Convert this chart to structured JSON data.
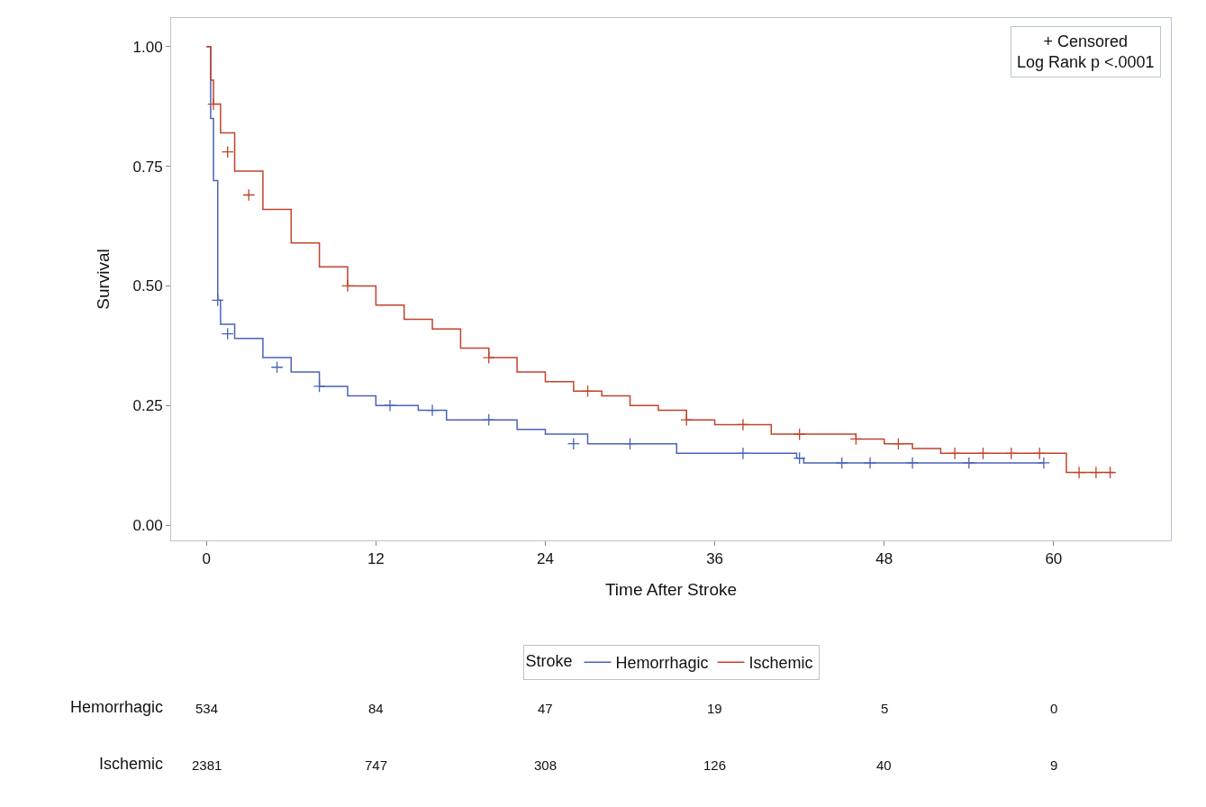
{
  "chart_data": {
    "type": "step",
    "xlabel": "Time After Stroke",
    "ylabel": "Survival",
    "legend_title": "Stroke",
    "legend": "bottom",
    "marker": "none",
    "line_style": "solid",
    "xlim": [
      -2.5,
      68.3
    ],
    "xticks": [
      0,
      12,
      24,
      36,
      48,
      60
    ],
    "ylim": [
      -0.032,
      1.06
    ],
    "yticks": [
      {
        "value": 0,
        "label": "0.00"
      },
      {
        "value": 0.25,
        "label": "0.25"
      },
      {
        "value": 0.5,
        "label": "0.50"
      },
      {
        "value": 0.75,
        "label": "0.75"
      },
      {
        "value": 1,
        "label": "1.00"
      }
    ],
    "series": [
      {
        "name": "Hemorrhagic",
        "color": "#4a63b8",
        "x": [
          0,
          0.3,
          0.5,
          0.8,
          1,
          2,
          4,
          6,
          8,
          10,
          12,
          15,
          17,
          22,
          24,
          27,
          33.3,
          41.8,
          42.3,
          59.3
        ],
        "values": [
          1,
          0.85,
          0.72,
          0.47,
          0.42,
          0.39,
          0.35,
          0.32,
          0.29,
          0.27,
          0.25,
          0.24,
          0.22,
          0.2,
          0.19,
          0.17,
          0.15,
          0.14,
          0.13,
          0.13
        ]
      },
      {
        "name": "Ischemic",
        "color": "#c0432b",
        "x": [
          0,
          0.3,
          0.5,
          1,
          2,
          4,
          6,
          8,
          10,
          12,
          14,
          16,
          18,
          20,
          22,
          24,
          26,
          28,
          30,
          32,
          34,
          36,
          40,
          46,
          48,
          50,
          52,
          60.9,
          64.3
        ],
        "values": [
          1,
          0.93,
          0.88,
          0.82,
          0.74,
          0.66,
          0.59,
          0.54,
          0.5,
          0.46,
          0.43,
          0.41,
          0.37,
          0.35,
          0.32,
          0.3,
          0.28,
          0.27,
          0.25,
          0.24,
          0.22,
          0.21,
          0.19,
          0.18,
          0.17,
          0.16,
          0.15,
          0.11,
          0.11
        ]
      },
      {
        "type": "scatter",
        "marker": "cross",
        "color": "#4a63b8",
        "x": [
          0.8,
          1.5,
          5,
          8,
          13,
          16,
          20,
          26,
          30,
          38,
          42,
          45,
          47,
          50,
          54,
          59.3
        ],
        "values": [
          0.47,
          0.4,
          0.33,
          0.29,
          0.25,
          0.24,
          0.22,
          0.17,
          0.17,
          0.15,
          0.14,
          0.13,
          0.13,
          0.13,
          0.13,
          0.13
        ]
      },
      {
        "type": "scatter",
        "marker": "cross",
        "color": "#c0432b",
        "x": [
          0.5,
          1.5,
          3,
          10,
          20,
          27,
          34,
          38,
          42,
          46,
          49,
          53,
          55,
          57,
          59,
          61.8,
          63,
          64
        ],
        "values": [
          0.88,
          0.78,
          0.69,
          0.5,
          0.35,
          0.28,
          0.22,
          0.21,
          0.19,
          0.18,
          0.17,
          0.15,
          0.15,
          0.15,
          0.15,
          0.11,
          0.11,
          0.11
        ]
      }
    ],
    "annotations": [
      "+ Censored",
      "Log Rank p <.0001",
      "Hemorrhagic",
      "534",
      "84",
      "47",
      "19",
      "5",
      "0",
      "Ischemic",
      "2381",
      "747",
      "308",
      "126",
      "40",
      "9"
    ]
  }
}
